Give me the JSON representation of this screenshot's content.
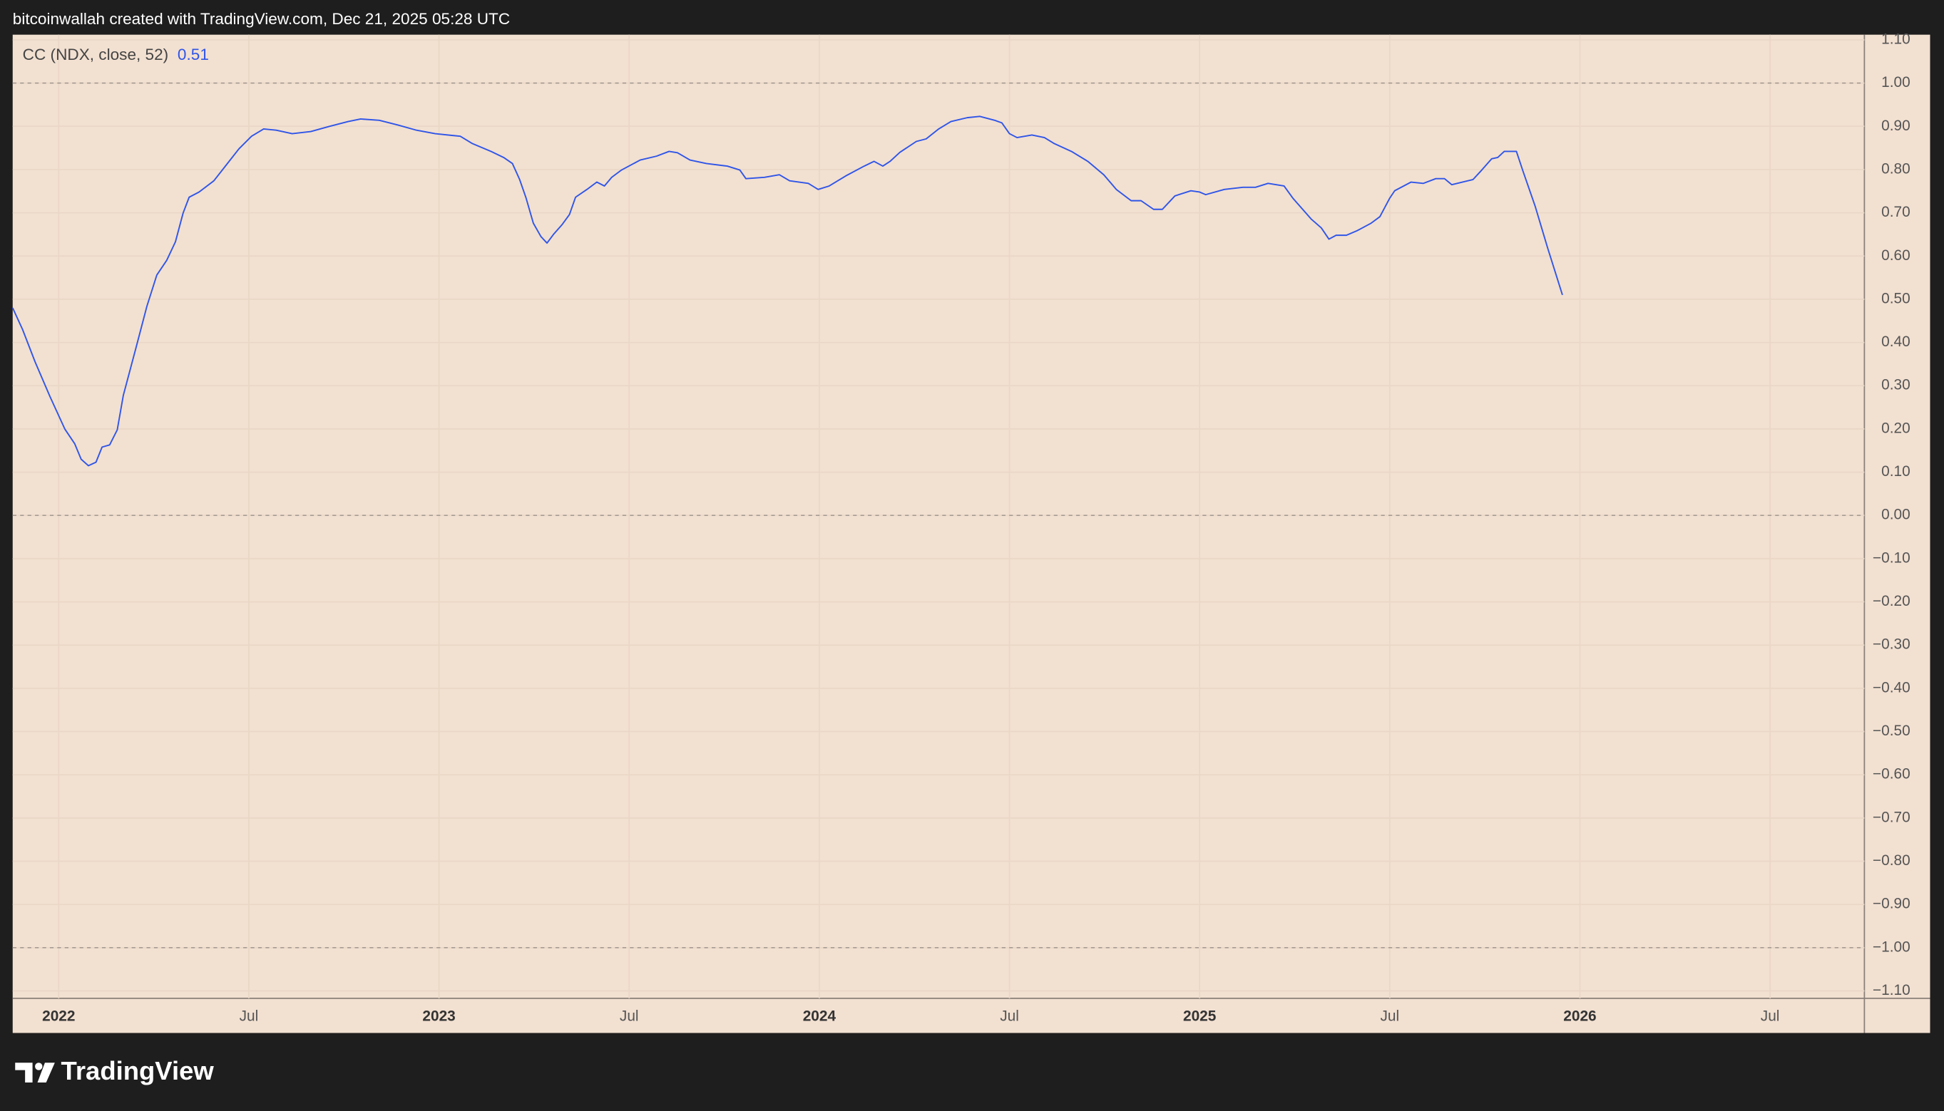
{
  "header": "bitcoinwallah created with TradingView.com, Dec 21, 2025 05:28 UTC",
  "footer": "TradingView",
  "chart_data": {
    "type": "line",
    "series": [
      {
        "name": "CC (NDX, close, 52)",
        "color": "#2f55e8",
        "last_value": 0.51,
        "values": [
          0.48,
          0.43,
          0.355,
          0.275,
          0.2,
          0.166,
          0.13,
          0.115,
          0.123,
          0.158,
          0.163,
          0.198,
          0.278,
          0.387,
          0.484,
          0.556,
          0.59,
          0.633,
          0.699,
          0.736,
          0.748,
          0.774,
          0.811,
          0.848,
          0.877,
          0.894,
          0.891,
          0.883,
          0.888,
          0.9,
          0.911,
          0.917,
          0.914,
          0.903,
          0.891,
          0.883,
          0.877,
          0.86,
          0.842,
          0.828,
          0.814,
          0.777,
          0.734,
          0.676,
          0.645,
          0.63,
          0.65,
          0.673,
          0.696,
          0.736,
          0.754,
          0.771,
          0.762,
          0.782,
          0.799,
          0.822,
          0.831,
          0.842,
          0.839,
          0.822,
          0.814,
          0.808,
          0.799,
          0.779,
          0.782,
          0.788,
          0.774,
          0.768,
          0.754,
          0.762,
          0.785,
          0.808,
          0.819,
          0.808,
          0.819,
          0.84,
          0.865,
          0.871,
          0.894,
          0.911,
          0.92,
          0.923,
          0.914,
          0.908,
          0.883,
          0.874,
          0.88,
          0.874,
          0.86,
          0.842,
          0.819,
          0.788,
          0.754,
          0.728,
          0.728,
          0.708,
          0.708,
          0.739,
          0.751,
          0.748,
          0.742,
          0.754,
          0.759,
          0.759,
          0.768,
          0.762,
          0.734,
          0.685,
          0.665,
          0.639,
          0.648,
          0.648,
          0.659,
          0.676,
          0.691,
          0.734,
          0.751,
          0.771,
          0.768,
          0.779,
          0.779,
          0.765,
          0.777,
          0.799,
          0.825,
          0.828,
          0.842,
          0.842,
          0.797,
          0.716,
          0.619,
          0.51
        ]
      }
    ],
    "x": [
      2021.879,
      2021.905,
      2021.938,
      2021.977,
      2022.016,
      2022.042,
      2022.059,
      2022.078,
      2022.098,
      2022.114,
      2022.134,
      2022.154,
      2022.17,
      2022.203,
      2022.232,
      2022.258,
      2022.284,
      2022.307,
      2022.327,
      2022.343,
      2022.369,
      2022.408,
      2022.441,
      2022.474,
      2022.507,
      2022.539,
      2022.572,
      2022.614,
      2022.663,
      2022.712,
      2022.761,
      2022.794,
      2022.843,
      2022.892,
      2022.941,
      2022.99,
      2023.056,
      2023.088,
      2023.137,
      2023.17,
      2023.193,
      2023.212,
      2023.229,
      2023.248,
      2023.268,
      2023.284,
      2023.301,
      2023.324,
      2023.343,
      2023.359,
      2023.389,
      2023.415,
      2023.435,
      2023.454,
      2023.48,
      2023.529,
      2023.572,
      2023.605,
      2023.627,
      2023.66,
      2023.703,
      2023.758,
      2023.791,
      2023.807,
      2023.856,
      2023.895,
      2023.922,
      2023.971,
      2023.997,
      2024.026,
      2024.069,
      2024.118,
      2024.144,
      2024.167,
      2024.186,
      2024.212,
      2024.255,
      2024.281,
      2024.314,
      2024.346,
      2024.389,
      2024.422,
      2024.461,
      2024.48,
      2024.5,
      2024.52,
      2024.559,
      2024.592,
      2024.618,
      2024.663,
      2024.706,
      2024.748,
      2024.781,
      2024.82,
      2024.846,
      2024.879,
      2024.902,
      2024.935,
      2024.977,
      2025.0,
      2025.016,
      2025.065,
      2025.114,
      2025.147,
      2025.18,
      2025.222,
      2025.245,
      2025.294,
      2025.32,
      2025.34,
      2025.359,
      2025.386,
      2025.415,
      2025.451,
      2025.474,
      2025.5,
      2025.513,
      2025.556,
      2025.588,
      2025.621,
      2025.644,
      2025.663,
      2025.719,
      2025.742,
      2025.768,
      2025.784,
      2025.801,
      2025.833,
      2025.85,
      2025.882,
      2025.915,
      2025.954
    ],
    "xlim": [
      2021.879,
      2026.748
    ],
    "ylim": [
      -1.117,
      1.112
    ],
    "xticks": [
      2022,
      {
        "value": 2022.5,
        "label": "Jul"
      },
      2023,
      {
        "value": 2023.5,
        "label": "Jul"
      },
      2024,
      {
        "value": 2024.5,
        "label": "Jul"
      },
      2025,
      {
        "value": 2025.5,
        "label": "Jul"
      },
      2026,
      {
        "value": 2026.5,
        "label": "Jul"
      }
    ],
    "yticks": [
      {
        "value": 1.1,
        "label": "1.10"
      },
      {
        "value": 1,
        "label": "1.00"
      },
      {
        "value": 0.9,
        "label": "0.90"
      },
      {
        "value": 0.8,
        "label": "0.80"
      },
      {
        "value": 0.7,
        "label": "0.70"
      },
      {
        "value": 0.6,
        "label": "0.60"
      },
      {
        "value": 0.5,
        "label": "0.50"
      },
      {
        "value": 0.4,
        "label": "0.40"
      },
      {
        "value": 0.3,
        "label": "0.30"
      },
      {
        "value": 0.2,
        "label": "0.20"
      },
      {
        "value": 0.1,
        "label": "0.10"
      },
      {
        "value": 0,
        "label": "0.00"
      },
      {
        "value": -0.1,
        "label": "−0.10"
      },
      {
        "value": -0.2,
        "label": "−0.20"
      },
      {
        "value": -0.3,
        "label": "−0.30"
      },
      {
        "value": -0.4,
        "label": "−0.40"
      },
      {
        "value": -0.5,
        "label": "−0.50"
      },
      {
        "value": -0.6,
        "label": "−0.60"
      },
      {
        "value": -0.7,
        "label": "−0.70"
      },
      {
        "value": -0.8,
        "label": "−0.80"
      },
      {
        "value": -0.9,
        "label": "−0.90"
      },
      {
        "value": -1,
        "label": "−1.00"
      },
      {
        "value": -1.1,
        "label": "−1.10"
      }
    ],
    "hlines": [
      1,
      0,
      -1
    ],
    "grid": true
  }
}
